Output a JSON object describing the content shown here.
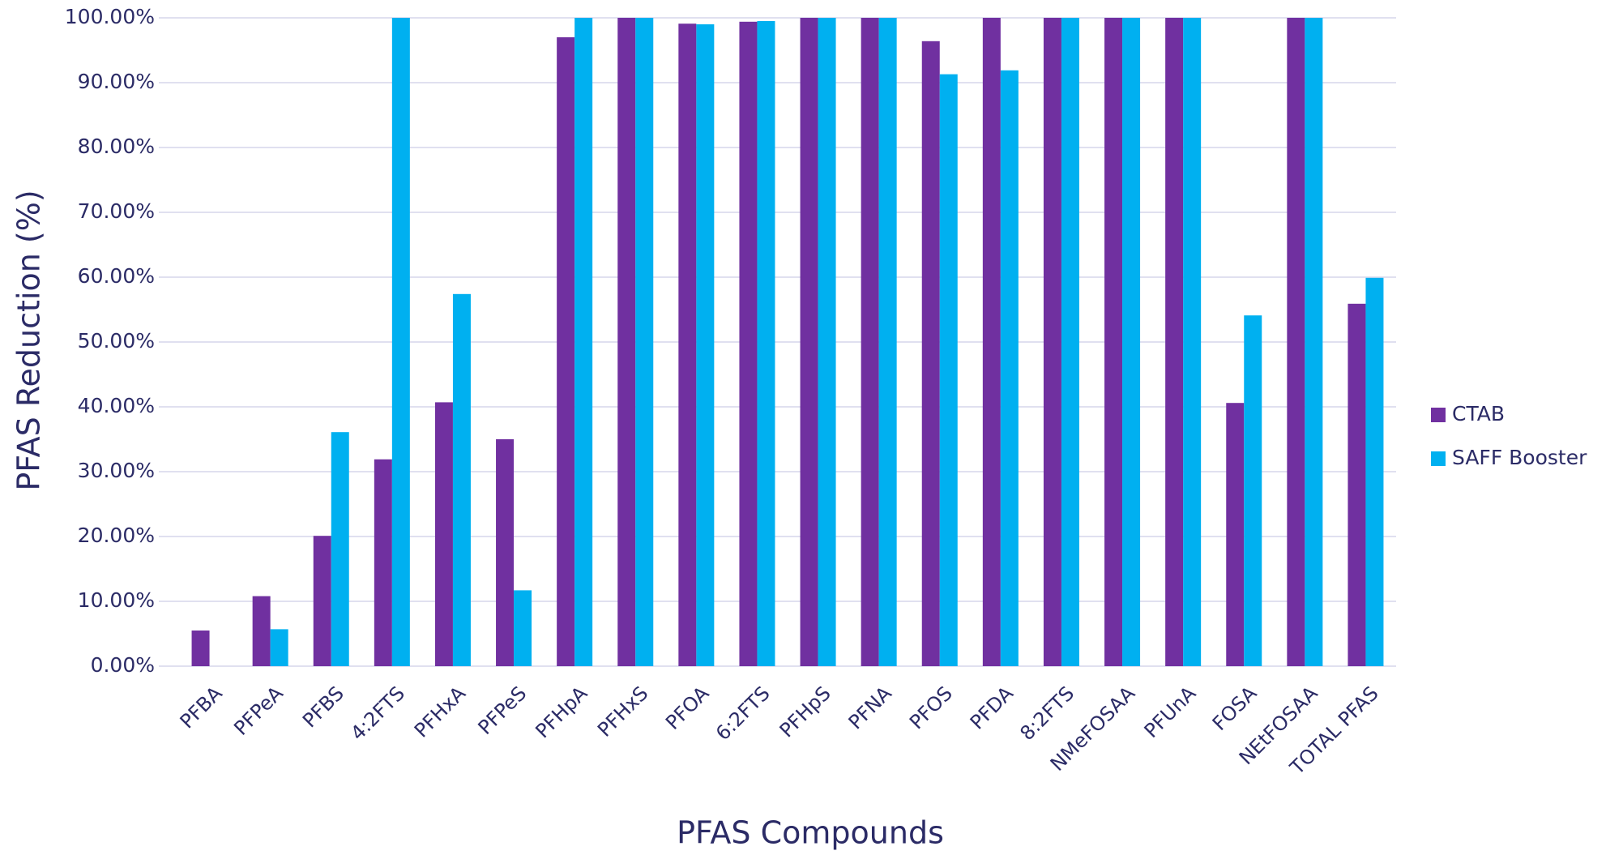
{
  "chart_data": {
    "type": "bar",
    "x_label": "PFAS Compounds",
    "y_label": "PFAS Reduction (%)",
    "categories": [
      "PFBA",
      "PFPeA",
      "PFBS",
      "4:2FTS",
      "PFHxA",
      "PFPeS",
      "PFHpA",
      "PFHxS",
      "PFOA",
      "6:2FTS",
      "PFHpS",
      "PFNA",
      "PFOS",
      "PFDA",
      "8:2FTS",
      "NMeFOSAA",
      "PFUnA",
      "FOSA",
      "NEtFOSAA",
      "TOTAL PFAS"
    ],
    "series": [
      {
        "name": "CTAB",
        "color": "#7030a0",
        "values": [
          5.5,
          10.8,
          20.1,
          31.9,
          40.7,
          35.0,
          97.0,
          100,
          99.1,
          99.4,
          100,
          100,
          96.4,
          100,
          100,
          100,
          100,
          40.6,
          100,
          55.9
        ]
      },
      {
        "name": "SAFF Booster",
        "color": "#00b0f0",
        "values": [
          0,
          5.7,
          36.1,
          100,
          57.4,
          11.7,
          100,
          100,
          99.0,
          99.5,
          100,
          100,
          91.3,
          91.9,
          100,
          100,
          100,
          54.1,
          100,
          59.9
        ]
      }
    ],
    "ylim": [
      0,
      100
    ],
    "yticks": [
      {
        "value": 0,
        "label": "0.00%"
      },
      {
        "value": 10,
        "label": "10.00%"
      },
      {
        "value": 20,
        "label": "20.00%"
      },
      {
        "value": 30,
        "label": "30.00%"
      },
      {
        "value": 40,
        "label": "40.00%"
      },
      {
        "value": 50,
        "label": "50.00%"
      },
      {
        "value": 60,
        "label": "60.00%"
      },
      {
        "value": 70,
        "label": "70.00%"
      },
      {
        "value": 80,
        "label": "80.00%"
      },
      {
        "value": 90,
        "label": "90.00%"
      },
      {
        "value": 100,
        "label": "100.00%"
      }
    ],
    "grid": true,
    "legend": "right"
  }
}
